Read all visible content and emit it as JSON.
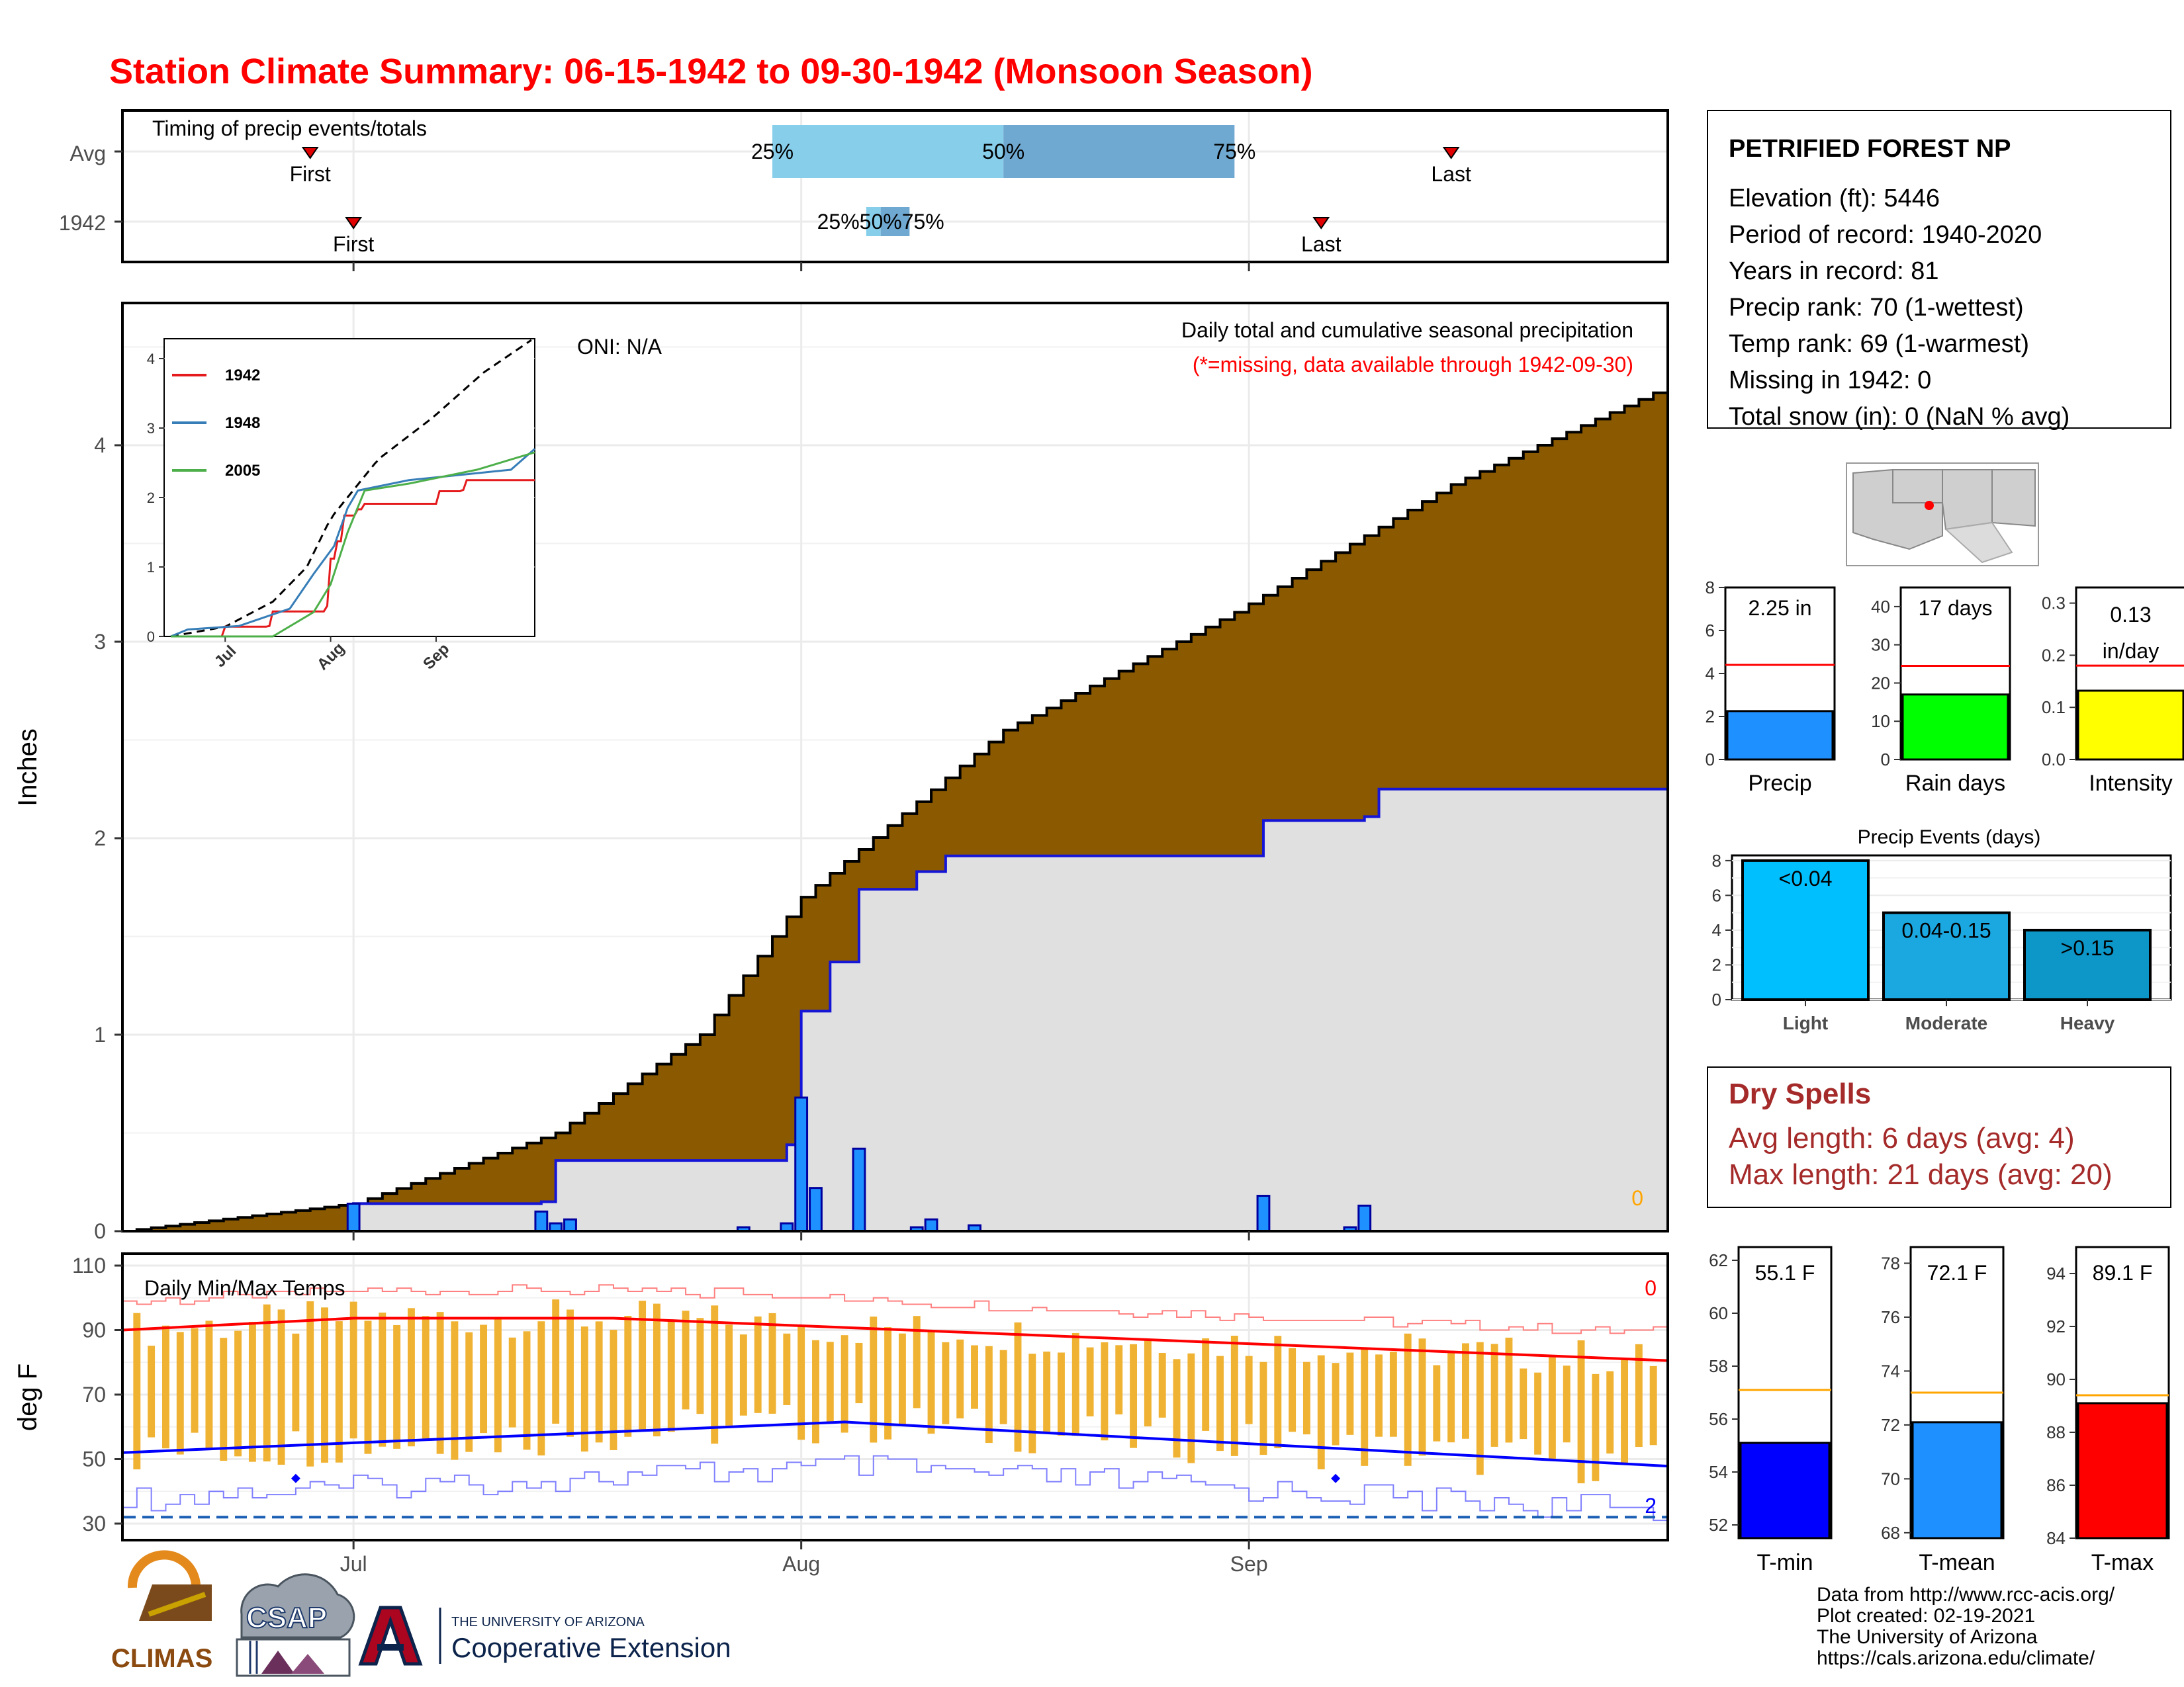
{
  "title": "Station Climate Summary: 06-15-1942 to 09-30-1942 (Monsoon Season)",
  "timing": {
    "label": "Timing of precip events/totals",
    "rows": [
      "Avg",
      "1942"
    ],
    "avg": {
      "first_day": 13,
      "p25_day": 45,
      "p50_day": 61,
      "p75_day": 77,
      "last_day": 92
    },
    "y1942": {
      "first_day": 16,
      "p25_day": 51.5,
      "p50_day": 52.5,
      "p75_day": 54.5,
      "last_day": 83
    },
    "first_label": "First",
    "last_label": "Last",
    "pct_labels": [
      "25%",
      "50%",
      "75%"
    ],
    "overlap_label": "25%50%75%"
  },
  "station": {
    "name": "PETRIFIED FOREST NP",
    "lines": [
      "Elevation (ft): 5446",
      "Period of record: 1940-2020",
      "Years in record: 81",
      "Precip rank: 70 (1-wettest)",
      "Temp rank: 69 (1-warmest)",
      "Missing in 1942: 0",
      "Total snow (in): 0 (NaN % avg)"
    ]
  },
  "main_precip": {
    "ylabel": "Inches",
    "oni": "ONI: N/A",
    "note1": "Daily total and cumulative seasonal precipitation",
    "note2": "(*=missing, data available through 1942-09-30)",
    "missing_count": "0",
    "y_ticks": [
      "0",
      "1",
      "2",
      "3",
      "4"
    ],
    "x_ticks": [
      "Jul",
      "Aug",
      "Sep"
    ]
  },
  "inset": {
    "legend": [
      "1942",
      "1948",
      "2005"
    ],
    "y_ticks": [
      "0",
      "1",
      "2",
      "3",
      "4"
    ],
    "x_ticks": [
      "Jul",
      "Aug",
      "Sep"
    ],
    "colors": {
      "1942": "#e41a1c",
      "1948": "#377eb8",
      "2005": "#4daf4a"
    }
  },
  "bars_precip": {
    "value": "2.25 in",
    "label": "Precip",
    "ticks": [
      "0",
      "2",
      "4",
      "6",
      "8"
    ]
  },
  "bars_raindays": {
    "value": "17 days",
    "label": "Rain days",
    "ticks": [
      "0",
      "10",
      "20",
      "30",
      "40"
    ]
  },
  "bars_intensity": {
    "value1": "0.13",
    "value2": "in/day",
    "label": "Intensity",
    "ticks": [
      "0.0",
      "0.1",
      "0.2",
      "0.3"
    ]
  },
  "events": {
    "title": "Precip Events (days)",
    "ticks": [
      "0",
      "2",
      "4",
      "6",
      "8"
    ],
    "categories": [
      "Light",
      "Moderate",
      "Heavy"
    ],
    "labels": [
      "<0.04",
      "0.04-0.15",
      ">0.15"
    ]
  },
  "dry_spells": {
    "title": "Dry Spells",
    "avg": "Avg length: 6 days (avg: 4)",
    "max": "Max length: 21 days (avg: 20)"
  },
  "temps": {
    "title": "Daily Min/Max Temps",
    "ylabel": "deg F",
    "y_ticks": [
      "30",
      "50",
      "70",
      "90",
      "110"
    ],
    "x_ticks": [
      "Jul",
      "Aug",
      "Sep"
    ],
    "max_count": "0",
    "min_count": "2"
  },
  "tmin": {
    "value": "55.1 F",
    "label": "T-min",
    "ticks": [
      "52",
      "54",
      "56",
      "58",
      "60",
      "62"
    ]
  },
  "tmean": {
    "value": "72.1 F",
    "label": "T-mean",
    "ticks": [
      "68",
      "70",
      "72",
      "74",
      "76",
      "78"
    ]
  },
  "tmax": {
    "value": "89.1 F",
    "label": "T-max",
    "ticks": [
      "84",
      "86",
      "88",
      "90",
      "92",
      "94"
    ]
  },
  "footer": {
    "lines": [
      "Data from http://www.rcc-acis.org/",
      "Plot created: 02-19-2021",
      "The University of Arizona",
      "https://cals.arizona.edu/climate/"
    ],
    "climas": "CLIMAS",
    "csap": "CSAP",
    "ua_small": "THE UNIVERSITY OF ARIZONA",
    "ua_big": "Cooperative Extension"
  },
  "colors": {
    "title": "#ff0000",
    "dry": "#a52a2a",
    "cum_avg": "#8b5a00",
    "cum_obs": "#e0e0e0",
    "obs_line": "#1515d8",
    "bar": "#1e90ff",
    "precip_bar": "#1e90ff",
    "rain_bar": "#00ff00",
    "int_bar": "#ffff00",
    "tmin_bar": "#0000ff",
    "tmean_bar": "#1e90ff",
    "tmax_bar": "#ff0000"
  },
  "chart_data": {
    "type": "area",
    "title": "Daily total and cumulative seasonal precipitation",
    "ylabel": "Inches",
    "ylim": [
      0,
      4.7
    ],
    "x_range": [
      "1942-06-15",
      "1942-09-30"
    ],
    "series": [
      {
        "name": "Avg",
        "x": [
          "06-15",
          "07-01",
          "07-15",
          "07-25",
          "08-01",
          "08-15",
          "08-31",
          "09-15",
          "09-30"
        ],
        "values": [
          0,
          0.14,
          0.5,
          1.0,
          1.7,
          2.55,
          3.15,
          3.8,
          4.3
        ]
      },
      {
        "name": "1942",
        "x": [
          "06-15",
          "07-01",
          "07-14",
          "07-15",
          "07-31",
          "08-01",
          "08-03",
          "08-05",
          "08-09",
          "08-11",
          "09-02",
          "09-09",
          "09-10",
          "09-30"
        ],
        "values": [
          0,
          0.14,
          0.15,
          0.36,
          0.44,
          1.12,
          1.37,
          1.74,
          1.83,
          1.91,
          2.09,
          2.11,
          2.25,
          2.25
        ]
      }
    ],
    "daily_precip": {
      "x": [
        "07-01",
        "07-14",
        "07-15",
        "07-16",
        "07-28",
        "07-31",
        "08-01",
        "08-02",
        "08-05",
        "08-09",
        "08-10",
        "08-13",
        "09-02",
        "09-08",
        "09-09"
      ],
      "values": [
        0.14,
        0.1,
        0.04,
        0.06,
        0.02,
        0.04,
        0.68,
        0.22,
        0.42,
        0.02,
        0.06,
        0.03,
        0.18,
        0.02,
        0.13
      ]
    }
  }
}
